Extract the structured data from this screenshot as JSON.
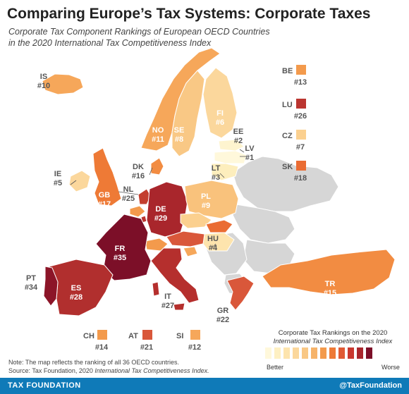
{
  "title": "Comparing Europe’s Tax Systems: Corporate Taxes",
  "subtitle_line1": "Corporate Tax Component Rankings of European OECD Countries",
  "subtitle_line2": "in the 2020 International Tax Competitiveness Index",
  "countries": {
    "IS": {
      "code": "IS",
      "rank": "#10",
      "color": "#f6a75a"
    },
    "NO": {
      "code": "NO",
      "rank": "#11",
      "color": "#f6a75a"
    },
    "SE": {
      "code": "SE",
      "rank": "#8",
      "color": "#f9c885"
    },
    "FI": {
      "code": "FI",
      "rank": "#6",
      "color": "#fbd79c"
    },
    "EE": {
      "code": "EE",
      "rank": "#2",
      "color": "#fef4cf"
    },
    "LV": {
      "code": "LV",
      "rank": "#1",
      "color": "#fff8db"
    },
    "LT": {
      "code": "LT",
      "rank": "#3",
      "color": "#fdeebd"
    },
    "DK": {
      "code": "DK",
      "rank": "#16",
      "color": "#f28c42"
    },
    "IE": {
      "code": "IE",
      "rank": "#5",
      "color": "#fbd79c"
    },
    "GB": {
      "code": "GB",
      "rank": "#17",
      "color": "#ee7a36"
    },
    "NL": {
      "code": "NL",
      "rank": "#25",
      "color": "#c33e2e"
    },
    "DE": {
      "code": "DE",
      "rank": "#29",
      "color": "#a9262c"
    },
    "PL": {
      "code": "PL",
      "rank": "#9",
      "color": "#f9c27c"
    },
    "HU": {
      "code": "HU",
      "rank": "#4",
      "color": "#fde4ad"
    },
    "FR": {
      "code": "FR",
      "rank": "#35",
      "color": "#7c0f28"
    },
    "PT": {
      "code": "PT",
      "rank": "#34",
      "color": "#8c1528"
    },
    "ES": {
      "code": "ES",
      "rank": "#28",
      "color": "#b12f2e"
    },
    "IT": {
      "code": "IT",
      "rank": "#27",
      "color": "#b52f2d"
    },
    "GR": {
      "code": "GR",
      "rank": "#22",
      "color": "#d9573a"
    },
    "TR": {
      "code": "TR",
      "rank": "#15",
      "color": "#f28c42"
    },
    "BE": {
      "code": "BE",
      "rank": "#13",
      "color": "#f39a4c"
    },
    "LU": {
      "code": "LU",
      "rank": "#26",
      "color": "#bb3530"
    },
    "CZ": {
      "code": "CZ",
      "rank": "#7",
      "color": "#fbd08f"
    },
    "SK": {
      "code": "SK",
      "rank": "#18",
      "color": "#ea6c33"
    },
    "CH": {
      "code": "CH",
      "rank": "#14",
      "color": "#f39a4c"
    },
    "AT": {
      "code": "AT",
      "rank": "#21",
      "color": "#d9573a"
    },
    "SI": {
      "code": "SI",
      "rank": "#12",
      "color": "#f6a75a"
    }
  },
  "non_oecd_color": "#d6d6d6",
  "legend": {
    "title_line1": "Corporate Tax Rankings on the 2020",
    "title_line2": "International Tax Competitiveness Index",
    "better": "Better",
    "worse": "Worse",
    "colors": [
      "#fff8db",
      "#fef0c2",
      "#fde4ad",
      "#fbd79c",
      "#f9c885",
      "#f6b36a",
      "#f39a4c",
      "#ee7a36",
      "#e05a34",
      "#c9382f",
      "#a9262c",
      "#7c0f28"
    ]
  },
  "note_line1": "Note: The map reflects the ranking of all 36 OECD countries.",
  "note_line2_prefix": "Source: Tax Foundation, 2020 ",
  "note_line2_italic": "International Tax Competitiveness Index.",
  "footer": {
    "left": "TAX FOUNDATION",
    "right": "@TaxFoundation"
  }
}
